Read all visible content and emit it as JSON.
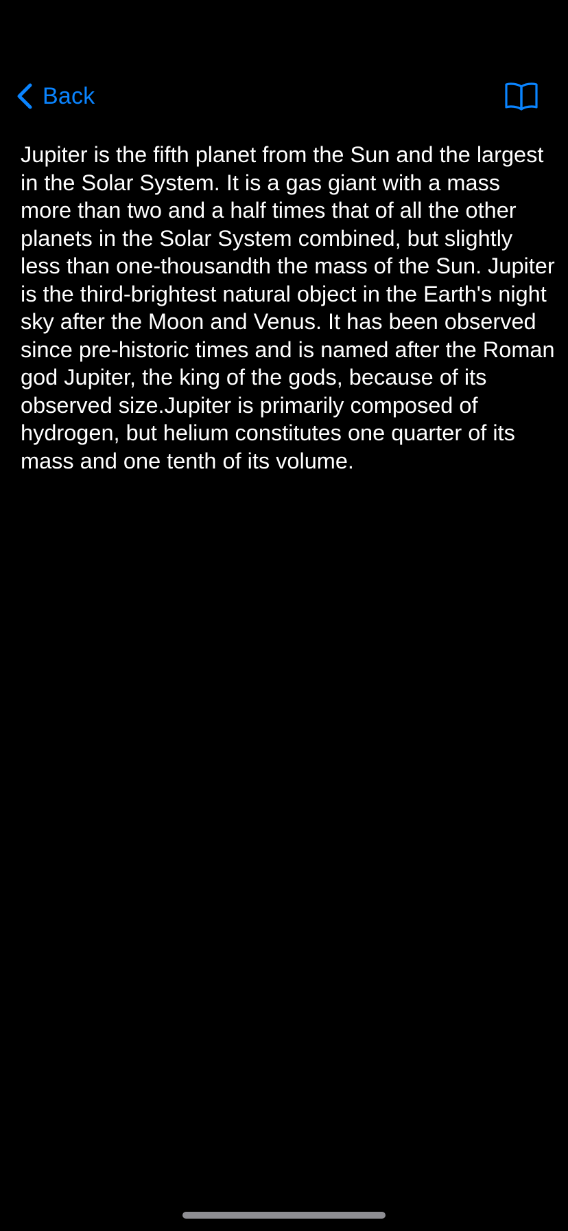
{
  "nav": {
    "back_label": "Back",
    "back_icon": "chevron-left-icon",
    "book_icon": "book-icon",
    "accent_color": "#0a84ff"
  },
  "article": {
    "body": "Jupiter is the fifth planet from the Sun and the largest in the Solar System. It is a gas giant with a mass more than two and a half times that of all the other planets in the Solar System combined, but slightly less than one-thousandth the mass of the Sun. Jupiter is the third-brightest natural object in the Earth's night sky after the Moon and Venus. It has been observed since pre-historic times and is named after the Roman god Jupiter, the king of the gods, because of its observed size.Jupiter is primarily composed of hydrogen, but helium constitutes one quarter of its mass and one tenth of its volume."
  },
  "theme": {
    "background": "#000000",
    "text_color": "#ffffff",
    "home_indicator_color": "#8e8e93"
  }
}
